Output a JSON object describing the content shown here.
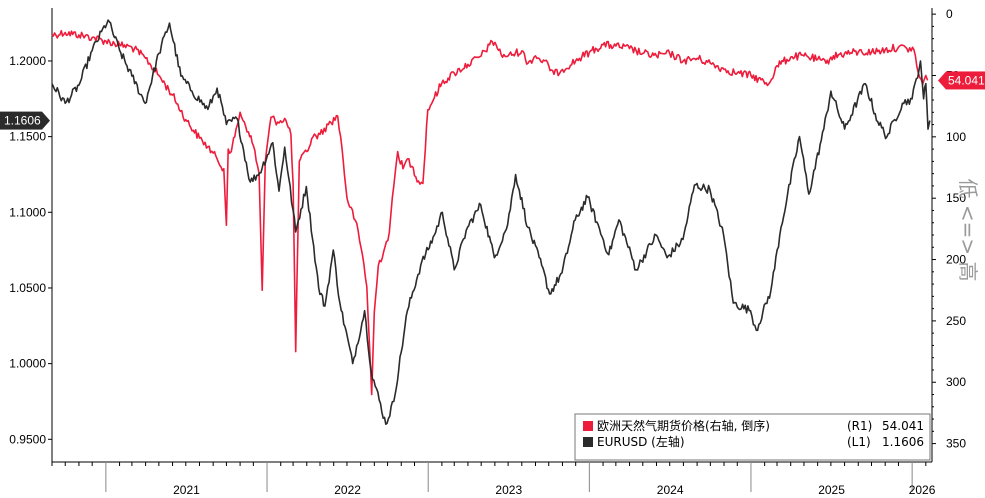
{
  "chart_data": {
    "type": "line",
    "title": "",
    "left_axis": {
      "ticks": [
        "0.9500",
        "1.0000",
        "1.0500",
        "1.1000",
        "1.1500",
        "1.2000"
      ],
      "range": [
        0.935,
        1.235
      ]
    },
    "right_axis": {
      "ticks": [
        "0",
        "50",
        "100",
        "150",
        "200",
        "250",
        "300",
        "350"
      ],
      "range": [
        -5,
        365
      ],
      "inverted": true,
      "title": "低 <=> 高"
    },
    "x_years": [
      "2021",
      "2022",
      "2023",
      "2024",
      "2025",
      "2026"
    ],
    "x_range": [
      "2020-09-01",
      "2026-02-15"
    ],
    "grid": false,
    "legend_placement": "bottom-right",
    "series": [
      {
        "name": "欧洲天然气期货价格(右轴, 倒序)",
        "axis": "R1",
        "axis_label": "(R1)",
        "last": "54.041",
        "color": "#ee1c3b",
        "points": [
          [
            "2020-09-01",
            17
          ],
          [
            "2020-10-01",
            15
          ],
          [
            "2020-11-01",
            17
          ],
          [
            "2020-12-01",
            19
          ],
          [
            "2021-01-01",
            22
          ],
          [
            "2021-02-01",
            25
          ],
          [
            "2021-03-01",
            27
          ],
          [
            "2021-04-01",
            36
          ],
          [
            "2021-05-01",
            50
          ],
          [
            "2021-06-01",
            66
          ],
          [
            "2021-07-01",
            86
          ],
          [
            "2021-08-01",
            101
          ],
          [
            "2021-08-20",
            108
          ],
          [
            "2021-09-10",
            118
          ],
          [
            "2021-09-25",
            126
          ],
          [
            "2021-10-01",
            172
          ],
          [
            "2021-10-05",
            110
          ],
          [
            "2021-10-12",
            112
          ],
          [
            "2021-10-20",
            100
          ],
          [
            "2021-11-01",
            80
          ],
          [
            "2021-11-20",
            96
          ],
          [
            "2021-12-01",
            107
          ],
          [
            "2021-12-14",
            130
          ],
          [
            "2021-12-21",
            225
          ],
          [
            "2021-12-28",
            120
          ],
          [
            "2022-01-10",
            84
          ],
          [
            "2022-01-25",
            88
          ],
          [
            "2022-02-10",
            85
          ],
          [
            "2022-02-24",
            98
          ],
          [
            "2022-03-01",
            138
          ],
          [
            "2022-03-07",
            275
          ],
          [
            "2022-03-15",
            120
          ],
          [
            "2022-04-01",
            112
          ],
          [
            "2022-04-15",
            100
          ],
          [
            "2022-05-01",
            98
          ],
          [
            "2022-05-20",
            90
          ],
          [
            "2022-06-10",
            83
          ],
          [
            "2022-06-20",
            110
          ],
          [
            "2022-07-01",
            150
          ],
          [
            "2022-07-20",
            168
          ],
          [
            "2022-08-05",
            196
          ],
          [
            "2022-08-15",
            222
          ],
          [
            "2022-08-26",
            310
          ],
          [
            "2022-09-01",
            243
          ],
          [
            "2022-09-10",
            205
          ],
          [
            "2022-09-25",
            190
          ],
          [
            "2022-10-05",
            178
          ],
          [
            "2022-10-15",
            140
          ],
          [
            "2022-10-24",
            112
          ],
          [
            "2022-11-05",
            126
          ],
          [
            "2022-11-15",
            118
          ],
          [
            "2022-11-25",
            124
          ],
          [
            "2022-12-10",
            136
          ],
          [
            "2022-12-20",
            138
          ],
          [
            "2022-12-31",
            78
          ],
          [
            "2023-01-15",
            68
          ],
          [
            "2023-02-01",
            56
          ],
          [
            "2023-03-01",
            48
          ],
          [
            "2023-04-01",
            41
          ],
          [
            "2023-05-01",
            34
          ],
          [
            "2023-05-20",
            25
          ],
          [
            "2023-06-01",
            23
          ],
          [
            "2023-06-15",
            33
          ],
          [
            "2023-07-01",
            34
          ],
          [
            "2023-08-01",
            30
          ],
          [
            "2023-08-15",
            40
          ],
          [
            "2023-09-01",
            34
          ],
          [
            "2023-10-01",
            42
          ],
          [
            "2023-10-13",
            49
          ],
          [
            "2023-11-01",
            45
          ],
          [
            "2023-12-01",
            38
          ],
          [
            "2024-01-01",
            31
          ],
          [
            "2024-02-01",
            25
          ],
          [
            "2024-03-01",
            26
          ],
          [
            "2024-04-01",
            28
          ],
          [
            "2024-05-01",
            32
          ],
          [
            "2024-06-01",
            34
          ],
          [
            "2024-07-01",
            32
          ],
          [
            "2024-08-01",
            38
          ],
          [
            "2024-09-01",
            36
          ],
          [
            "2024-10-01",
            40
          ],
          [
            "2024-11-01",
            45
          ],
          [
            "2024-12-01",
            48
          ],
          [
            "2025-01-01",
            50
          ],
          [
            "2025-02-10",
            57
          ],
          [
            "2025-03-01",
            42
          ],
          [
            "2025-04-01",
            35
          ],
          [
            "2025-05-01",
            34
          ],
          [
            "2025-06-01",
            37
          ],
          [
            "2025-06-20",
            40
          ],
          [
            "2025-07-01",
            35
          ],
          [
            "2025-08-01",
            32
          ],
          [
            "2025-09-01",
            31
          ],
          [
            "2025-10-01",
            31
          ],
          [
            "2025-11-01",
            29
          ],
          [
            "2025-12-01",
            27
          ],
          [
            "2025-12-20",
            28
          ],
          [
            "2026-01-05",
            29
          ],
          [
            "2026-01-15",
            48
          ],
          [
            "2026-01-25",
            57
          ],
          [
            "2026-02-01",
            50
          ],
          [
            "2026-02-05",
            54.041
          ]
        ]
      },
      {
        "name": "EURUSD (左轴)",
        "axis": "L1",
        "axis_label": "(L1)",
        "last": "1.1606",
        "color": "#2b2b2b",
        "points": [
          [
            "2020-09-01",
            1.185
          ],
          [
            "2020-10-01",
            1.172
          ],
          [
            "2020-11-01",
            1.184
          ],
          [
            "2020-12-01",
            1.207
          ],
          [
            "2021-01-06",
            1.227
          ],
          [
            "2021-02-01",
            1.207
          ],
          [
            "2021-03-01",
            1.19
          ],
          [
            "2021-03-31",
            1.172
          ],
          [
            "2021-05-01",
            1.205
          ],
          [
            "2021-05-25",
            1.225
          ],
          [
            "2021-06-20",
            1.19
          ],
          [
            "2021-07-15",
            1.18
          ],
          [
            "2021-08-20",
            1.168
          ],
          [
            "2021-09-10",
            1.182
          ],
          [
            "2021-10-01",
            1.158
          ],
          [
            "2021-10-25",
            1.162
          ],
          [
            "2021-11-24",
            1.12
          ],
          [
            "2021-12-15",
            1.126
          ],
          [
            "2022-01-14",
            1.146
          ],
          [
            "2022-01-28",
            1.114
          ],
          [
            "2022-02-10",
            1.143
          ],
          [
            "2022-03-07",
            1.087
          ],
          [
            "2022-03-31",
            1.117
          ],
          [
            "2022-04-28",
            1.05
          ],
          [
            "2022-05-12",
            1.038
          ],
          [
            "2022-05-31",
            1.075
          ],
          [
            "2022-06-15",
            1.04
          ],
          [
            "2022-07-14",
            1.0
          ],
          [
            "2022-08-10",
            1.035
          ],
          [
            "2022-08-25",
            0.995
          ],
          [
            "2022-09-27",
            0.96
          ],
          [
            "2022-10-15",
            0.975
          ],
          [
            "2022-11-15",
            1.035
          ],
          [
            "2022-12-15",
            1.065
          ],
          [
            "2023-01-15",
            1.085
          ],
          [
            "2023-02-02",
            1.1
          ],
          [
            "2023-03-01",
            1.062
          ],
          [
            "2023-03-31",
            1.09
          ],
          [
            "2023-04-30",
            1.105
          ],
          [
            "2023-05-31",
            1.07
          ],
          [
            "2023-06-30",
            1.092
          ],
          [
            "2023-07-18",
            1.125
          ],
          [
            "2023-08-15",
            1.09
          ],
          [
            "2023-09-15",
            1.065
          ],
          [
            "2023-10-03",
            1.046
          ],
          [
            "2023-10-31",
            1.06
          ],
          [
            "2023-11-30",
            1.095
          ],
          [
            "2023-12-28",
            1.11
          ],
          [
            "2024-02-14",
            1.072
          ],
          [
            "2024-03-08",
            1.095
          ],
          [
            "2024-04-16",
            1.062
          ],
          [
            "2024-05-31",
            1.085
          ],
          [
            "2024-06-25",
            1.07
          ],
          [
            "2024-07-31",
            1.082
          ],
          [
            "2024-08-26",
            1.118
          ],
          [
            "2024-09-30",
            1.115
          ],
          [
            "2024-10-31",
            1.085
          ],
          [
            "2024-11-22",
            1.04
          ],
          [
            "2024-12-31",
            1.035
          ],
          [
            "2025-01-13",
            1.022
          ],
          [
            "2025-02-15",
            1.048
          ],
          [
            "2025-03-10",
            1.09
          ],
          [
            "2025-04-21",
            1.15
          ],
          [
            "2025-05-12",
            1.112
          ],
          [
            "2025-06-15",
            1.155
          ],
          [
            "2025-07-01",
            1.18
          ],
          [
            "2025-08-01",
            1.155
          ],
          [
            "2025-09-17",
            1.185
          ],
          [
            "2025-10-15",
            1.16
          ],
          [
            "2025-11-05",
            1.15
          ],
          [
            "2025-12-10",
            1.172
          ],
          [
            "2026-01-01",
            1.175
          ],
          [
            "2026-01-20",
            1.2
          ],
          [
            "2026-01-27",
            1.175
          ],
          [
            "2026-02-01",
            1.185
          ],
          [
            "2026-02-06",
            1.155
          ],
          [
            "2026-02-10",
            1.1606
          ]
        ]
      }
    ]
  },
  "legend": {
    "entries": [
      {
        "label": "欧洲天然气期货价格(右轴, 倒序)",
        "axis": "(R1)",
        "value": "54.041",
        "color": "#ee1c3b"
      },
      {
        "label": "EURUSD (左轴)",
        "axis": "(L1)",
        "value": "1.1606",
        "color": "#2b2b2b"
      }
    ]
  },
  "tags": {
    "left": {
      "value": "1.1606",
      "bg": "#2b2b2b",
      "fg": "#ffffff"
    },
    "right": {
      "value": "54.041",
      "bg": "#ee1c3b",
      "fg": "#ffffff"
    }
  }
}
